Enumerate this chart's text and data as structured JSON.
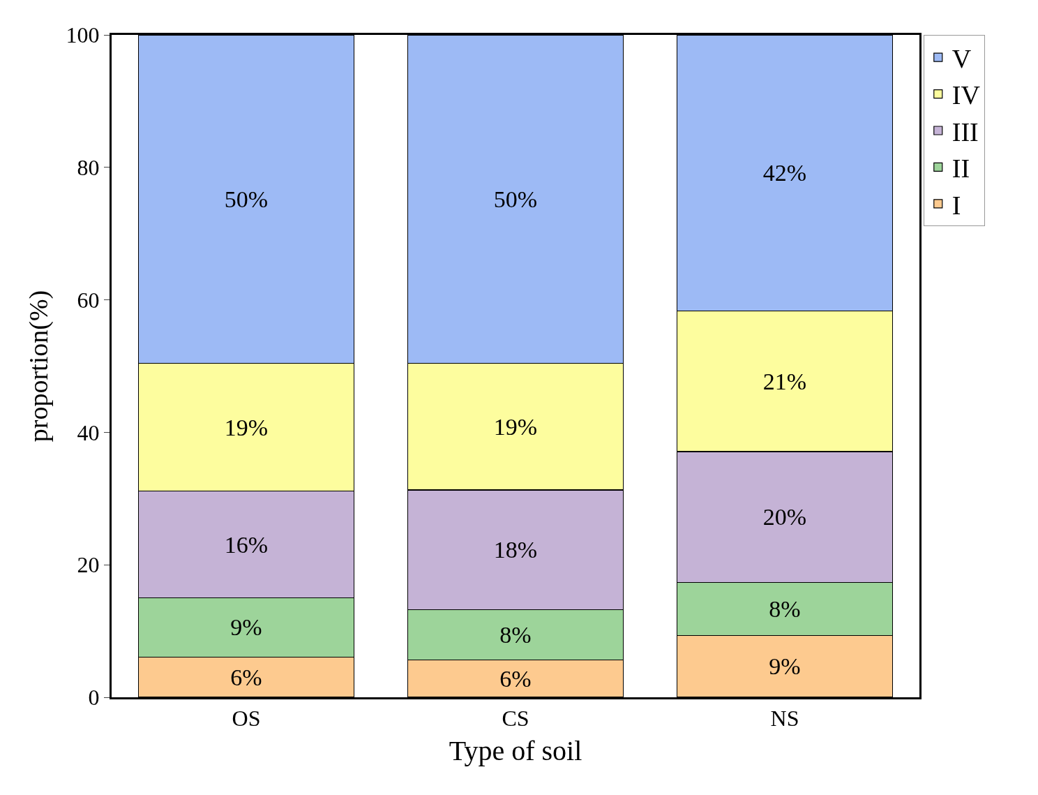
{
  "chart_data": {
    "type": "bar",
    "stacked": true,
    "xlabel": "Type of soil",
    "ylabel": "proportion(%)",
    "categories": [
      "OS",
      "CS",
      "NS"
    ],
    "series": [
      {
        "name": "I",
        "color": "#fdca8f",
        "values": [
          6.1,
          5.6,
          9.3
        ],
        "value_labels": [
          "6%",
          "6%",
          "9%"
        ]
      },
      {
        "name": "II",
        "color": "#9dd49a",
        "values": [
          8.9,
          7.6,
          8.0
        ],
        "value_labels": [
          "9%",
          "8%",
          "8%"
        ]
      },
      {
        "name": "III",
        "color": "#c5b3d6",
        "values": [
          16.1,
          18.1,
          19.8
        ],
        "value_labels": [
          "16%",
          "18%",
          "20%"
        ]
      },
      {
        "name": "IV",
        "color": "#fdfd9e",
        "values": [
          19.3,
          19.1,
          21.2
        ],
        "value_labels": [
          "19%",
          "19%",
          "21%"
        ]
      },
      {
        "name": "V",
        "color": "#9dbaf5",
        "values": [
          49.6,
          49.6,
          41.7
        ],
        "value_labels": [
          "50%",
          "50%",
          "42%"
        ]
      }
    ],
    "ylim": [
      0,
      100
    ],
    "yticks": [
      0,
      20,
      40,
      60,
      80,
      100
    ],
    "grid": false,
    "legend": "top right"
  }
}
